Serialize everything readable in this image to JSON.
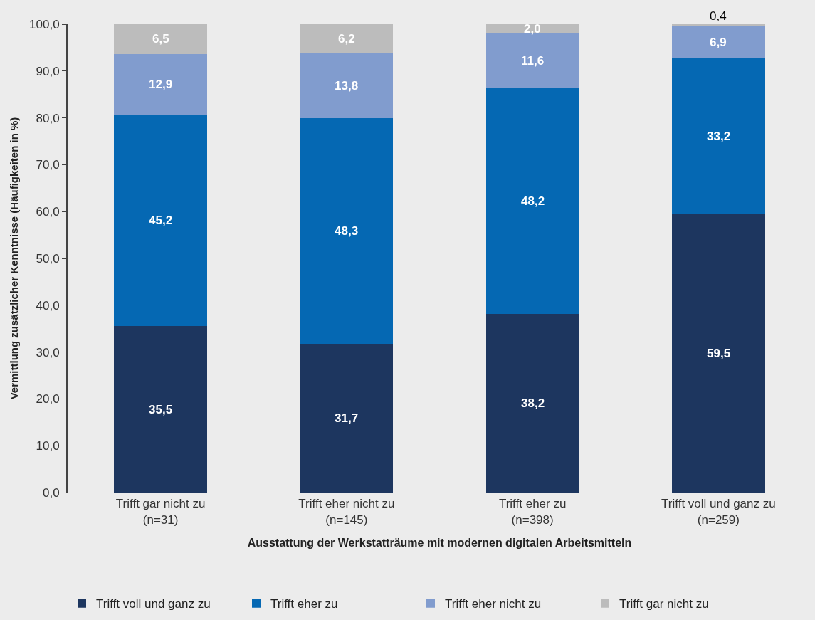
{
  "chart_data": {
    "type": "bar",
    "stacked": true,
    "xlabel": "Ausstattung der Werkstatträume mit modernen digitalen Arbeitsmitteln",
    "ylabel": "Vermittlung zusätzlicher Kenntnisse (Häufigkeiten in %)",
    "categories": [
      "Trifft gar nicht zu\n(n=31)",
      "Trifft eher nicht zu\n(n=145)",
      "Trifft eher zu\n(n=398)",
      "Trifft voll und ganz zu\n(n=259)"
    ],
    "series": [
      {
        "name": "Trifft voll und ganz zu",
        "color": "#1d365f",
        "values": [
          35.5,
          31.7,
          38.2,
          59.5
        ],
        "value_labels": [
          "35,5",
          "31,7",
          "38,2",
          "59,5"
        ]
      },
      {
        "name": "Trifft eher zu",
        "color": "#0568b3",
        "values": [
          45.2,
          48.3,
          48.2,
          33.2
        ],
        "value_labels": [
          "45,2",
          "48,3",
          "48,2",
          "33,2"
        ]
      },
      {
        "name": "Trifft eher nicht zu",
        "color": "#819cce",
        "values": [
          12.9,
          13.8,
          11.6,
          6.9
        ],
        "value_labels": [
          "12,9",
          "13,8",
          "11,6",
          "6,9"
        ]
      },
      {
        "name": "Trifft gar nicht zu",
        "color": "#bcbcbc",
        "values": [
          6.5,
          6.2,
          2.0,
          0.4
        ],
        "value_labels": [
          "6,5",
          "6,2",
          "2,0",
          "0,4"
        ]
      }
    ],
    "ylim": [
      0,
      100
    ],
    "yticks": [
      {
        "value": 0,
        "label": "0,0"
      },
      {
        "value": 10,
        "label": "10,0"
      },
      {
        "value": 20,
        "label": "20,0"
      },
      {
        "value": 30,
        "label": "30,0"
      },
      {
        "value": 40,
        "label": "40,0"
      },
      {
        "value": 50,
        "label": "50,0"
      },
      {
        "value": 60,
        "label": "60,0"
      },
      {
        "value": 70,
        "label": "70,0"
      },
      {
        "value": 80,
        "label": "80,0"
      },
      {
        "value": 90,
        "label": "90,0"
      },
      {
        "value": 100,
        "label": "100,0"
      }
    ],
    "grid": false,
    "legend": "bottom"
  }
}
